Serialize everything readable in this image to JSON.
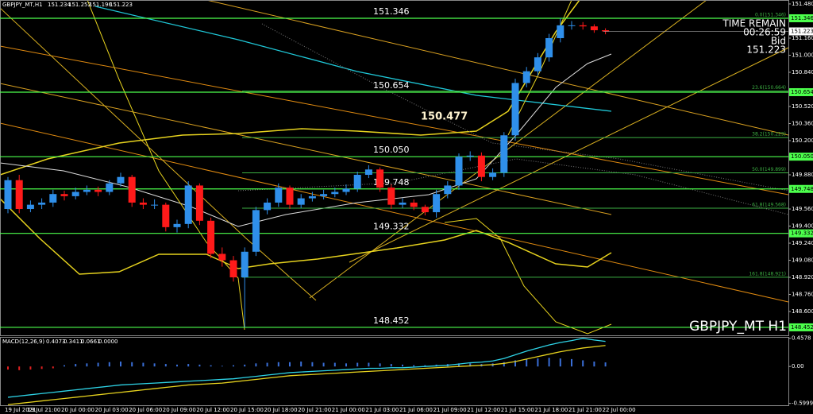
{
  "chart_data": [
    {
      "type": "candlestick",
      "title": "GBPJPY_MT,H1",
      "categories": [
        "19 Jul 2021",
        null,
        "19 Jul 21:00",
        null,
        null,
        "20 Jul 00:00",
        null,
        null,
        "20 Jul 03:00",
        null,
        null,
        "20 Jul 06:00",
        null,
        null,
        "20 Jul 09:00",
        null,
        null,
        "20 Jul 12:00",
        null,
        null,
        "20 Jul 15:00",
        null,
        null,
        "20 Jul 18:00",
        null,
        null,
        "20 Jul 21:00",
        null,
        null,
        "21 Jul 00:00",
        null,
        null,
        "21 Jul 03:00",
        null,
        null,
        "21 Jul 06:00",
        null,
        null,
        "21 Jul 09:00",
        null,
        null,
        "21 Jul 12:00",
        null,
        null,
        "21 Jul 15:00",
        null,
        null,
        "21 Jul 18:00",
        null,
        null,
        "21 Jul 21:00",
        null,
        null,
        "22 Jul 00:00"
      ],
      "open": [
        149.56,
        149.83,
        149.56,
        149.6,
        149.62,
        149.7,
        149.68,
        149.72,
        149.74,
        149.72,
        149.8,
        149.86,
        149.62,
        149.6,
        149.6,
        149.39,
        149.42,
        149.78,
        149.45,
        149.14,
        149.08,
        148.92,
        149.16,
        149.55,
        149.62,
        149.76,
        149.6,
        149.66,
        149.68,
        149.7,
        149.72,
        149.75,
        149.88,
        149.93,
        149.76,
        149.6,
        149.62,
        149.58,
        149.53,
        149.7,
        149.78,
        150.05,
        150.06,
        149.86,
        149.9,
        150.25,
        150.74,
        150.85,
        150.98,
        151.16,
        151.28,
        151.28,
        151.27,
        151.234
      ],
      "high": [
        149.86,
        149.88,
        149.64,
        149.66,
        149.74,
        149.73,
        149.76,
        149.78,
        149.77,
        149.83,
        149.9,
        149.88,
        149.66,
        149.65,
        149.62,
        149.46,
        149.82,
        149.8,
        149.48,
        149.2,
        149.12,
        149.2,
        149.58,
        149.66,
        149.8,
        149.78,
        149.7,
        149.72,
        149.74,
        149.76,
        149.79,
        149.91,
        149.97,
        149.95,
        149.79,
        149.66,
        149.65,
        149.6,
        149.74,
        149.82,
        150.08,
        150.1,
        150.09,
        149.94,
        150.28,
        150.78,
        150.89,
        151.02,
        151.2,
        151.346,
        151.32,
        151.31,
        151.29,
        151.252
      ],
      "low": [
        149.52,
        149.52,
        149.53,
        149.56,
        149.58,
        149.64,
        149.65,
        149.69,
        149.68,
        149.69,
        149.77,
        149.58,
        149.56,
        149.56,
        149.35,
        149.34,
        149.38,
        149.41,
        149.1,
        149.02,
        148.88,
        148.452,
        149.12,
        149.51,
        149.58,
        149.56,
        149.57,
        149.63,
        149.65,
        149.67,
        149.69,
        149.72,
        149.85,
        149.72,
        149.56,
        149.57,
        149.55,
        149.5,
        149.48,
        149.66,
        149.74,
        150.01,
        149.82,
        149.83,
        149.86,
        150.2,
        150.7,
        150.81,
        150.94,
        151.12,
        151.24,
        151.24,
        151.21,
        151.196
      ],
      "close": [
        149.83,
        149.56,
        149.6,
        149.62,
        149.7,
        149.68,
        149.72,
        149.74,
        149.72,
        149.8,
        149.86,
        149.62,
        149.6,
        149.6,
        149.39,
        149.42,
        149.78,
        149.45,
        149.14,
        149.08,
        148.92,
        149.16,
        149.55,
        149.62,
        149.76,
        149.6,
        149.66,
        149.68,
        149.7,
        149.72,
        149.75,
        149.88,
        149.93,
        149.76,
        149.6,
        149.62,
        149.58,
        149.53,
        149.7,
        149.78,
        150.05,
        150.06,
        149.86,
        149.9,
        150.25,
        150.74,
        150.85,
        150.98,
        151.16,
        151.28,
        151.28,
        151.27,
        151.234,
        151.223
      ],
      "up_color": "#2f8fea",
      "down_color": "#ff1a1a",
      "ylim": [
        148.392,
        151.517
      ],
      "yticks": [
        {
          "value": 151.48,
          "label": "151.480"
        },
        {
          "value": 151.16,
          "label": "151.160"
        },
        {
          "value": 151,
          "label": "151.000"
        },
        {
          "value": 150.84,
          "label": "150.840"
        },
        {
          "value": 150.52,
          "label": "150.520"
        },
        {
          "value": 150.36,
          "label": "150.360"
        },
        {
          "value": 150.2,
          "label": "150.200"
        },
        {
          "value": 149.88,
          "label": "149.880"
        },
        {
          "value": 149.56,
          "label": "149.560"
        },
        {
          "value": 149.4,
          "label": "149.400"
        },
        {
          "value": 149.24,
          "label": "149.240"
        },
        {
          "value": 149.08,
          "label": "149.080"
        },
        {
          "value": 148.92,
          "label": "148.920"
        },
        {
          "value": 148.76,
          "label": "148.760"
        },
        {
          "value": 148.6,
          "label": "148.600"
        }
      ],
      "levels": [
        151.346,
        150.654,
        {
          "value": 150.05,
          "label": "150.050"
        },
        149.748,
        149.332,
        148.452
      ],
      "level_color": "#4cff4c",
      "fib_levels": [
        {
          "value": 151.346,
          "label": "0.0(151.346)"
        },
        {
          "value": 150.664,
          "label": "23.6(150.664)"
        },
        {
          "value": 150.229,
          "label": "38.2(150.229)"
        },
        {
          "value": 149.899,
          "label": "50.0(149.899)"
        },
        {
          "value": 149.568,
          "label": "61.8(149.568)"
        },
        {
          "value": 148.921,
          "label": "161.8(148.921)"
        }
      ],
      "fib_color": "#3cb043",
      "annotations": [
        150.477
      ],
      "info": {
        "timer_title": "TIME REMAIN",
        "timer": "00:26:59",
        "price_title": "Bid"
      },
      "watermark": "GBPJPY_MT H1"
    },
    {
      "type": "macd",
      "title": "MACD(12,26,9)",
      "histogram": [
        -0.05,
        -0.06,
        -0.05,
        -0.04,
        -0.03,
        0.02,
        0.04,
        0.05,
        0.06,
        0.07,
        0.08,
        0.07,
        0.06,
        0.05,
        0.04,
        0.03,
        0.04,
        0.03,
        0.02,
        0.01,
        0.02,
        0.03,
        0.05,
        0.06,
        0.07,
        0.07,
        0.08,
        0.07,
        0.06,
        0.06,
        0.05,
        0.06,
        0.06,
        0.05,
        0.04,
        0.03,
        0.02,
        0.02,
        0.03,
        0.04,
        0.05,
        0.05,
        0.04,
        0.05,
        0.07,
        0.1,
        0.12,
        0.13,
        0.14,
        0.13,
        0.12,
        0.1,
        0.08,
        0.0661
      ],
      "main": [
        -0.5,
        -0.48,
        -0.46,
        -0.44,
        -0.42,
        -0.4,
        -0.38,
        -0.36,
        -0.34,
        -0.32,
        -0.3,
        -0.29,
        -0.28,
        -0.27,
        -0.26,
        -0.25,
        -0.24,
        -0.23,
        -0.22,
        -0.21,
        -0.2,
        -0.18,
        -0.16,
        -0.14,
        -0.12,
        -0.1,
        -0.09,
        -0.08,
        -0.07,
        -0.06,
        -0.05,
        -0.04,
        -0.03,
        -0.03,
        -0.02,
        -0.02,
        -0.01,
        0.0,
        0.01,
        0.02,
        0.04,
        0.06,
        0.07,
        0.09,
        0.13,
        0.19,
        0.25,
        0.3,
        0.35,
        0.39,
        0.42,
        0.4578,
        0.43,
        0.4073
      ],
      "signal": [
        -0.62,
        -0.6,
        -0.58,
        -0.56,
        -0.54,
        -0.52,
        -0.5,
        -0.48,
        -0.46,
        -0.44,
        -0.42,
        -0.4,
        -0.38,
        -0.36,
        -0.34,
        -0.32,
        -0.3,
        -0.29,
        -0.28,
        -0.27,
        -0.25,
        -0.23,
        -0.21,
        -0.19,
        -0.17,
        -0.15,
        -0.14,
        -0.13,
        -0.12,
        -0.11,
        -0.1,
        -0.09,
        -0.08,
        -0.07,
        -0.06,
        -0.05,
        -0.04,
        -0.03,
        -0.02,
        -0.01,
        0.0,
        0.01,
        0.02,
        0.03,
        0.05,
        0.08,
        0.12,
        0.16,
        0.2,
        0.24,
        0.27,
        0.3,
        0.32,
        0.3411
      ],
      "fourth_buffer": {
        "value": 0,
        "label": "0.0000"
      },
      "main_color": "#2ed3e6",
      "signal_color": "#e6d21e",
      "hist_up_color": "#3a6fd8",
      "hist_down_color": "#e02020",
      "ylim": [
        -0.63,
        0.48
      ],
      "yticks": [
        0.4578,
        {
          "value": 0,
          "label": "0.00"
        },
        -0.5999
      ]
    }
  ]
}
